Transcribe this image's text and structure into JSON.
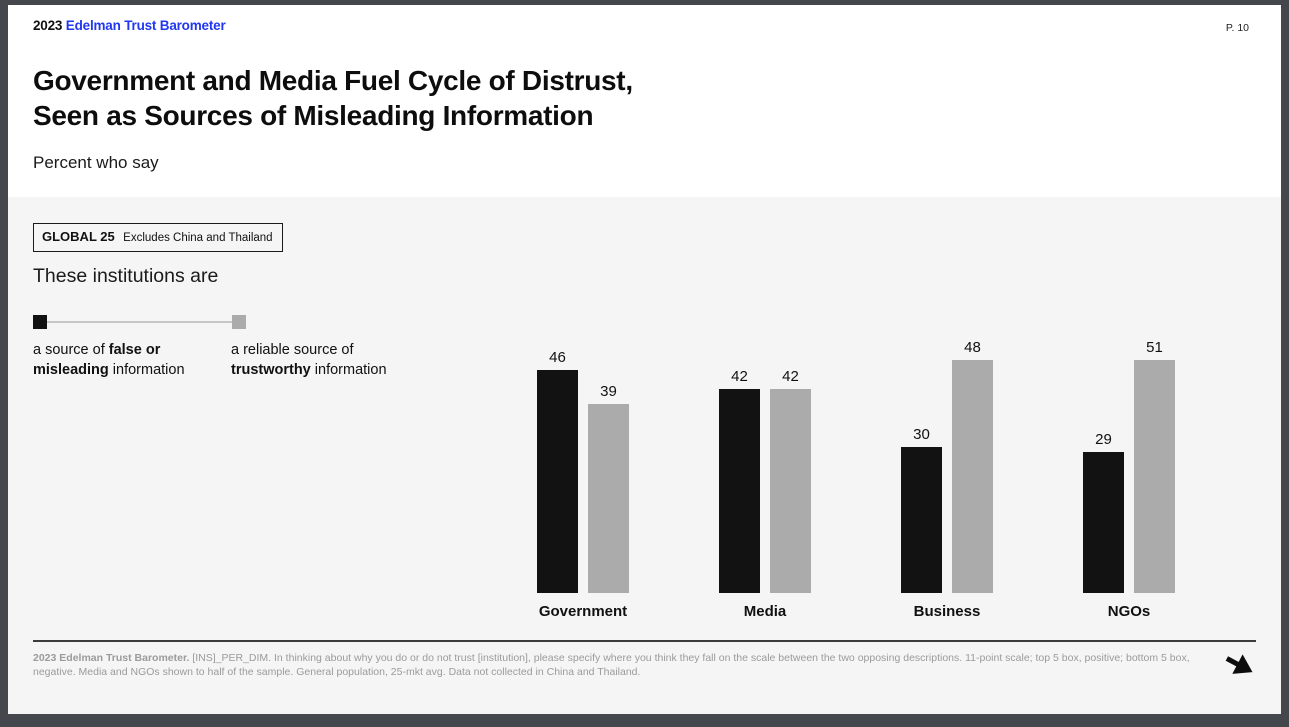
{
  "header": {
    "year": "2023",
    "brand": "Edelman Trust Barometer",
    "page_number": "P. 10",
    "title_lines": [
      "Government and Media Fuel Cycle of Distrust,",
      "Seen as Sources of Misleading Information"
    ],
    "subtitle": "Percent who say"
  },
  "global_tag": {
    "label": "GLOBAL 25",
    "note": "Excludes China and Thailand"
  },
  "section_heading": "These institutions are",
  "legend": {
    "left": {
      "prefix": "a source of ",
      "bold": "false or misleading",
      "suffix": " information"
    },
    "right": {
      "prefix": "a reliable source of ",
      "bold": "trustworthy",
      "suffix": " information"
    }
  },
  "colors": {
    "brand_blue": "#2137f1",
    "bar_black": "#121212",
    "bar_gray": "#ababab",
    "section_bg": "#f5f5f6"
  },
  "chart_data": {
    "type": "bar",
    "categories": [
      "Government",
      "Media",
      "Business",
      "NGOs"
    ],
    "series": [
      {
        "name": "a source of false or misleading information",
        "color": "#121212",
        "values": [
          46,
          42,
          30,
          29
        ]
      },
      {
        "name": "a reliable source of trustworthy information",
        "color": "#ababab",
        "values": [
          39,
          42,
          48,
          51
        ]
      }
    ],
    "ylim": [
      0,
      51
    ],
    "value_labels": true,
    "grid": false,
    "legend_position": "left"
  },
  "footer": {
    "source_bold": "2023 Edelman Trust Barometer.",
    "source_rest": " [INS]_PER_DIM. In thinking about why you do or do not trust [institution], please specify where you think they fall on the scale between the two opposing descriptions. 11-point scale; top 5 box, positive; bottom 5 box, negative. Media and NGOs shown to half of the sample. General population, 25-mkt avg. Data not collected in China and Thailand."
  }
}
